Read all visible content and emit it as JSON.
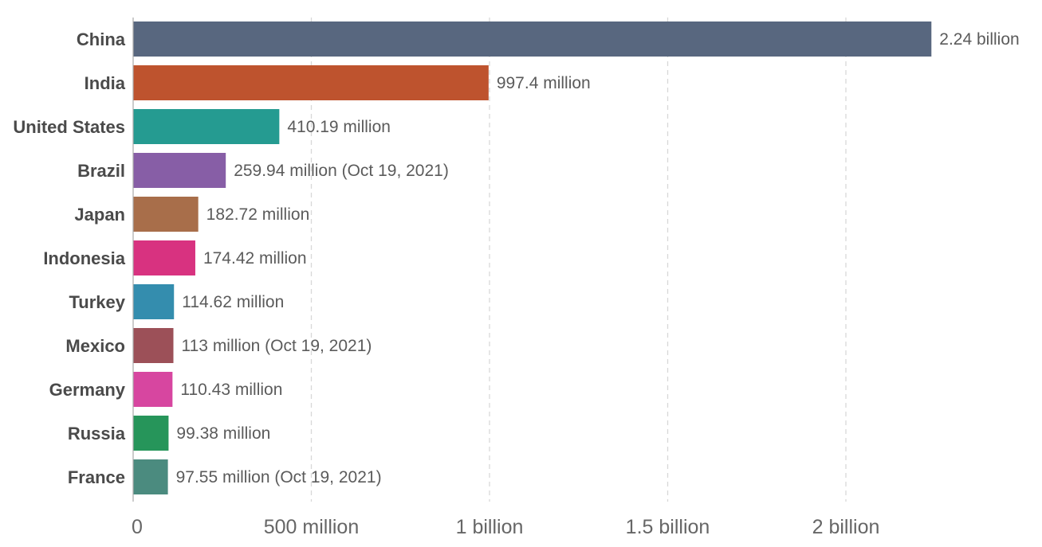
{
  "chart_data": {
    "type": "bar",
    "orientation": "horizontal",
    "title": "",
    "xlabel": "",
    "ylabel": "",
    "xlim": [
      0,
      2240000000
    ],
    "grid": true,
    "legend": "none",
    "categories": [
      "China",
      "India",
      "United States",
      "Brazil",
      "Japan",
      "Indonesia",
      "Turkey",
      "Mexico",
      "Germany",
      "Russia",
      "France"
    ],
    "values": [
      2240000000,
      997400000,
      410190000,
      259940000,
      182720000,
      174420000,
      114620000,
      113000000,
      110430000,
      99380000,
      97550000
    ],
    "value_labels": [
      "2.24 billion",
      "997.4 million",
      "410.19 million",
      "259.94 million (Oct 19, 2021)",
      "182.72 million",
      "174.42 million",
      "114.62 million",
      "113 million (Oct 19, 2021)",
      "110.43 million",
      "99.38 million",
      "97.55 million (Oct 19, 2021)"
    ],
    "colors": [
      "#58677f",
      "#be532e",
      "#259b91",
      "#875ea6",
      "#a86e4a",
      "#d83280",
      "#348dae",
      "#9c5058",
      "#d746a0",
      "#26955a",
      "#4b8b7f"
    ],
    "x_ticks": [
      {
        "value": 0,
        "label": "0"
      },
      {
        "value": 500000000,
        "label": "500 million"
      },
      {
        "value": 1000000000,
        "label": "1 billion"
      },
      {
        "value": 1500000000,
        "label": "1.5 billion"
      },
      {
        "value": 2000000000,
        "label": "2 billion"
      }
    ]
  }
}
